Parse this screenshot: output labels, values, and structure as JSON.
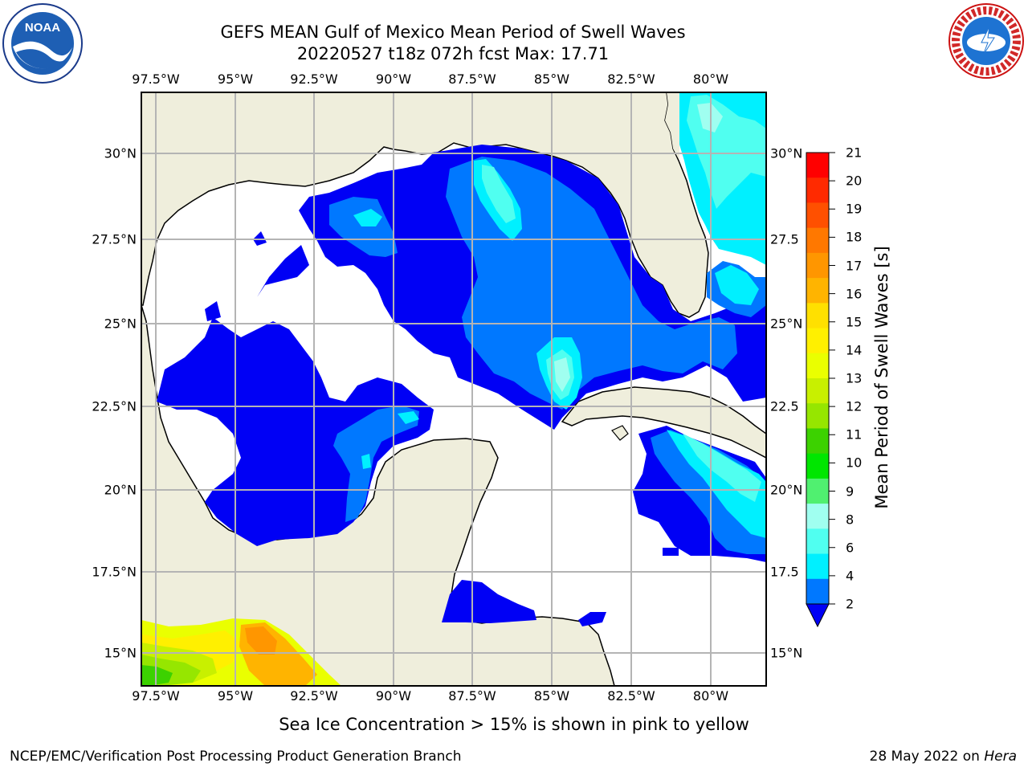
{
  "title": {
    "line1": "GEFS MEAN Gulf of Mexico Mean Period of Swell Waves",
    "line2": "20220527 t18z 072h fcst   Max: 17.71"
  },
  "axes": {
    "lon_labels": [
      "97.5°W",
      "95°W",
      "92.5°W",
      "90°W",
      "87.5°W",
      "85°W",
      "82.5°W",
      "80°W"
    ],
    "lat_labels_left": [
      "30°N",
      "27.5°N",
      "25°N",
      "22.5°N",
      "20°N",
      "17.5°N",
      "15°N"
    ],
    "lat_labels_right": [
      "30°N",
      "27.5",
      "25°N",
      "22.5",
      "20°N",
      "17.5",
      "15°N"
    ]
  },
  "colorbar": {
    "label": "Mean Period of Swell Waves [s]",
    "ticks": [
      "21",
      "20",
      "19",
      "18",
      "17",
      "16",
      "15",
      "14",
      "13",
      "12",
      "11",
      "10",
      "9",
      "8",
      "6",
      "4",
      "2"
    ],
    "colors": [
      "#ff0000",
      "#ff2a00",
      "#ff5000",
      "#ff7800",
      "#ff9600",
      "#ffb400",
      "#ffe000",
      "#fff000",
      "#eaff00",
      "#c8f000",
      "#96e600",
      "#3cd200",
      "#00e600",
      "#50f070",
      "#a0fff0",
      "#50fff0",
      "#00f0ff",
      "#0078ff"
    ],
    "under_color": "#0000f5"
  },
  "note": "Sea Ice Concentration > 15% is shown in pink to yellow",
  "footer": {
    "left": "NCEP/EMC/Verification Post Processing Product Generation Branch",
    "right_date": "28 May 2022 on ",
    "right_host": "Hera"
  },
  "logos": {
    "left": "noaa-logo",
    "right": "national-weather-service-logo",
    "noaa_text": "NOAA",
    "nws_text": "NATIONAL WEATHER SERVICE"
  },
  "colors": {
    "land": "#efeedc",
    "water_missing": "#ffffff",
    "grid": "#b4b4b4"
  }
}
